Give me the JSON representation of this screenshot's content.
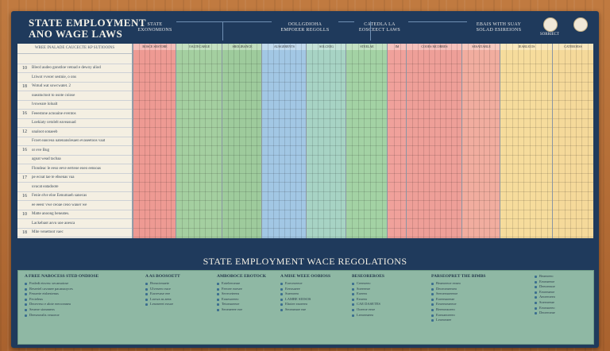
{
  "header": {
    "title_line1": "STATE EMPLOYMENT",
    "title_line2": "ANO WAGE LAWS",
    "labels": [
      {
        "line1": "STATE",
        "line2": "EXONOMIONS"
      },
      {
        "line1": "OOLLGDIOHA",
        "line2": "EMPOEER REGOLLS"
      },
      {
        "line1": "CATEDLA LA",
        "line2": "EOSCEECT LAWS"
      },
      {
        "line1": "EBAIS WITH SUAY",
        "line2": "SOLAD ESIREIONS"
      }
    ],
    "emblem_label": "SORRIECT"
  },
  "table": {
    "left_header": "WREE INALADE CAUCECTE KP SUTIOOINS",
    "rows": [
      {
        "num": "",
        "text": ""
      },
      {
        "num": "10",
        "text": "Blecd audeo gonstloe vetoad e dewoy aliod"
      },
      {
        "num": "",
        "text": "Ltiwot vvecer sestnie, o ons"
      },
      {
        "num": "18",
        "text": "Wotud wat sowcwatet. 2"
      },
      {
        "num": "",
        "text": "uueatuctoot to osote coiose"
      },
      {
        "num": "",
        "text": "lvoweare loloalt"
      },
      {
        "num": "16",
        "text": "Feeestone acnoaine eventos"
      },
      {
        "num": "",
        "text": "Loekiaty cetolelt eaveasuad"
      },
      {
        "num": "12",
        "text": "unaloot sonaeeb"
      },
      {
        "num": "",
        "text": "Fcoet eaoceoa uatenanslesaen evaseetoos vaat"
      },
      {
        "num": "16",
        "text": "or eve Bug"
      },
      {
        "num": "",
        "text": "agoat wead tacbaa"
      },
      {
        "num": "",
        "text": "Flondeac le eeso eeve eerteoe eoeo eensoas"
      },
      {
        "num": "17",
        "text": "pe ecoat tae te ebsenas vaa"
      },
      {
        "num": "",
        "text": "uvacat eatadoote"
      },
      {
        "num": "16",
        "text": "Fenie elve eloe Eenumaeh sanecas"
      },
      {
        "num": "",
        "text": "ee eeesr vwe ceoae ceoo wauer we"
      },
      {
        "num": "10",
        "text": "Matte anoong beneates."
      },
      {
        "num": "",
        "text": "Lackebaot asvu uoe aoesca"
      },
      {
        "num": "18",
        "text": "Mite venettoot vaec"
      }
    ],
    "columns": [
      {
        "name": "ROSCE SESTOBE",
        "color": "#ee9a93"
      },
      {
        "name": "OALTECARGE",
        "color": "#a4cfa0"
      },
      {
        "name": "SROLIBANCE",
        "color": "#9ecb9c"
      },
      {
        "name": "AUSGERENTS",
        "color": "#a2c7e4"
      },
      {
        "name": "SOLCEEG",
        "color": "#a7d3c4"
      },
      {
        "name": "STEELAE",
        "color": "#a3d2a4"
      },
      {
        "name": "IM",
        "color": "#f0a19b"
      },
      {
        "name": "COOES MCORRES",
        "color": "#ee9f98"
      },
      {
        "name": "SESATIABLE",
        "color": "#f1ad9f"
      },
      {
        "name": "IEARLICOS",
        "color": "#f6dc9c"
      },
      {
        "name": "CATEROESS",
        "color": "#f5d99a"
      }
    ]
  },
  "banner": {
    "title": "STATE EMPLOYMENT WACE REGOLATIONS"
  },
  "bottom": {
    "columns": [
      {
        "head": "A FREE NABOCESS STED ONDIOSE",
        "items": [
          "Fealedt etsvesc secamotose",
          "Reseeiel cavanee pacanaoyces",
          "Fesuerte etsbestenus",
          "Fecieleus",
          "Deoeveso e alote ereoceanea",
          "Seueoe sionaneos",
          "Deeseoealis veuoeoe"
        ]
      },
      {
        "head": "A AS BOOSOETT",
        "items": [
          "Bveactenaete",
          "Ulveseeo eace",
          "Eorrevase eee",
          "Loowa as aeea",
          "Leseaeeet eosoe"
        ]
      },
      {
        "head": "AMBOBOCE EROTOCK",
        "items": [
          "Eoteleeoerae",
          "Feeoee eoesee",
          "Seveceteeea",
          "Eouesoeeeo",
          "Tetoeaoeeoe",
          "Seoeaeeee eoe"
        ]
      },
      {
        "head": "A MISE WEEE OOBIOSS",
        "items": [
          "Eoeceoeeoe",
          "Eeeosaeee",
          "Sueeoeeo",
          "LAMBE SIOSOS",
          "Ehoiee eaoeeeo",
          "Seoeaeaoe eae"
        ]
      },
      {
        "head": "BESEOREROES",
        "items": [
          "Ceeeoeeo",
          "Soeeeeoe",
          "Eoeeeo",
          "Eeoeeo",
          "CAE DASETES",
          "Ooeeoe eeoe",
          "Leeoeeaeeo"
        ]
      },
      {
        "head": "PARSEOPRET THE BIMBS",
        "items": [
          "Beaeoeeoe eeaeo",
          "Deoeoeaeeoeo",
          "Seeoeeaoeeeoe",
          "Eoeeeaoeeae",
          "Eeoeeoeaeeoe",
          "Reeeoeaoeeo",
          "Eoeoaeoeeeo",
          "Leoeoeaee"
        ]
      },
      {
        "head": "",
        "items": [
          "Beaeoeeo",
          "Eeoeaeeoe",
          "Deeoeeaoe",
          "Eeoeeaeoe",
          "Aeoeeoeeo",
          "Soeeoeeae",
          "Eeoeaoeeo",
          "Deoeeoeae"
        ]
      }
    ]
  }
}
